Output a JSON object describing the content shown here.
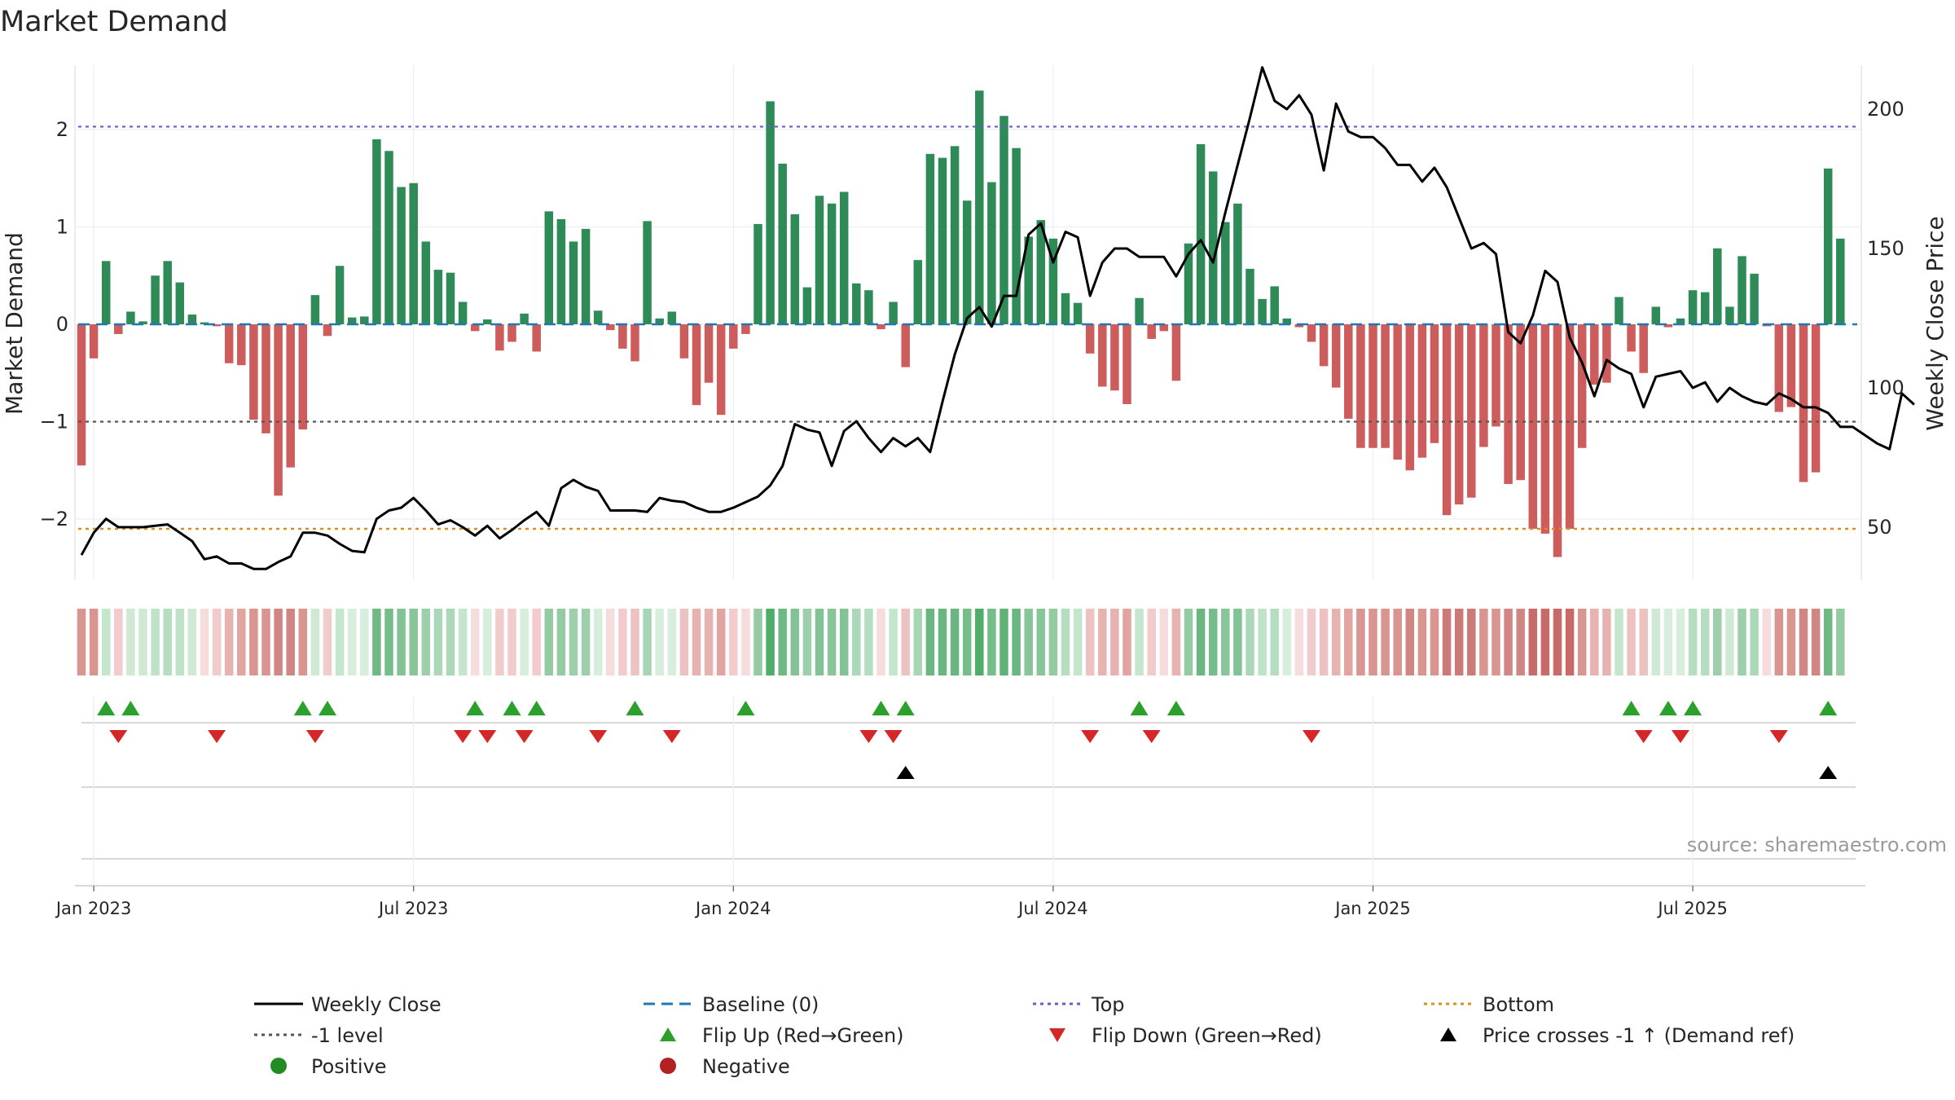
{
  "chart_data": {
    "type": "bar",
    "title": "Market Demand",
    "ylabel_left": "Market Demand",
    "ylabel_right": "Weekly Close Price",
    "ylim_left": [
      -2.65,
      2.5
    ],
    "ylim_right": [
      37,
      214
    ],
    "left_ticks": [
      {
        "v": 2,
        "label": "2"
      },
      {
        "v": 1,
        "label": "1"
      },
      {
        "v": 0,
        "label": "0"
      },
      {
        "v": -1,
        "label": "−1"
      },
      {
        "v": -2,
        "label": "−2"
      }
    ],
    "right_ticks": [
      {
        "v": 200,
        "label": "200"
      },
      {
        "v": 150,
        "label": "150"
      },
      {
        "v": 100,
        "label": "100"
      },
      {
        "v": 50,
        "label": "50"
      }
    ],
    "x_ticks": [
      {
        "i": 1,
        "label": "Jan 2023"
      },
      {
        "i": 27,
        "label": "Jul 2023"
      },
      {
        "i": 53,
        "label": "Jan 2024"
      },
      {
        "i": 79,
        "label": "Jul 2024"
      },
      {
        "i": 105,
        "label": "Jan 2025"
      },
      {
        "i": 131,
        "label": "Jul 2025"
      }
    ],
    "reference_lines": {
      "top": 2.03,
      "bottom": -2.1,
      "minus_one": -1.0,
      "baseline": 0
    },
    "demand": [
      -1.45,
      -0.35,
      0.65,
      -0.1,
      0.13,
      0.03,
      0.5,
      0.65,
      0.43,
      0.1,
      0.02,
      -0.02,
      -0.4,
      -0.42,
      -0.98,
      -1.12,
      -1.76,
      -1.47,
      -1.08,
      0.3,
      -0.12,
      0.6,
      0.07,
      0.08,
      1.9,
      1.78,
      1.41,
      1.45,
      0.85,
      0.56,
      0.53,
      0.23,
      -0.07,
      0.05,
      -0.27,
      -0.18,
      0.11,
      -0.28,
      1.16,
      1.08,
      0.85,
      0.98,
      0.14,
      -0.06,
      -0.25,
      -0.38,
      1.06,
      0.06,
      0.13,
      -0.35,
      -0.83,
      -0.6,
      -0.93,
      -0.25,
      -0.1,
      1.03,
      2.29,
      1.65,
      1.13,
      0.38,
      1.32,
      1.24,
      1.36,
      0.42,
      0.35,
      -0.05,
      0.23,
      -0.44,
      0.66,
      1.75,
      1.71,
      1.83,
      1.27,
      2.4,
      1.46,
      2.14,
      1.81,
      0.9,
      1.07,
      0.88,
      0.32,
      0.22,
      -0.3,
      -0.64,
      -0.68,
      -0.82,
      0.27,
      -0.15,
      -0.07,
      -0.58,
      0.83,
      1.85,
      1.57,
      1.05,
      1.24,
      0.57,
      0.26,
      0.39,
      0.06,
      -0.03,
      -0.18,
      -0.43,
      -0.65,
      -0.97,
      -1.27,
      -1.27,
      -1.27,
      -1.39,
      -1.5,
      -1.37,
      -1.22,
      -1.96,
      -1.85,
      -1.78,
      -1.26,
      -1.05,
      -1.64,
      -1.6,
      -2.1,
      -2.15,
      -2.39,
      -2.1,
      -1.27,
      -0.62,
      -0.6,
      0.28,
      -0.28,
      -0.5,
      0.18,
      -0.03,
      0.06,
      0.35,
      0.33,
      0.78,
      0.18,
      0.7,
      0.52,
      -0.02,
      -0.9,
      -0.85,
      -1.62,
      -1.52,
      1.6,
      0.88
    ],
    "close": [
      40,
      48,
      53,
      50,
      50,
      50,
      50.5,
      51,
      48,
      45,
      38.5,
      39.5,
      37,
      37,
      35,
      35,
      37.5,
      39.5,
      48,
      48,
      47,
      44,
      41.5,
      41,
      53,
      56,
      57,
      60.5,
      56,
      51,
      52.5,
      50,
      47,
      50.5,
      46,
      49,
      52.5,
      55.5,
      50.5,
      64,
      67,
      64.5,
      63,
      56,
      56,
      56,
      55.5,
      60.5,
      59.5,
      59,
      57,
      55.5,
      55.5,
      57,
      59,
      61,
      65,
      72,
      87,
      85,
      84,
      72,
      84.5,
      88,
      82,
      77,
      82,
      79,
      82,
      77,
      95,
      112,
      125,
      129,
      122,
      133,
      133,
      155,
      159,
      145,
      156,
      154,
      133,
      145,
      150,
      150,
      147,
      147,
      147,
      140,
      148,
      153,
      145,
      163,
      180,
      197,
      215,
      203,
      200,
      205,
      198,
      178,
      202,
      192,
      190,
      190,
      186,
      180,
      180,
      174,
      179,
      172,
      161,
      150,
      152,
      148,
      120,
      116,
      126,
      142,
      138,
      118,
      109,
      97,
      110,
      107,
      105,
      93,
      104,
      105,
      106,
      100,
      102,
      95,
      100,
      97,
      95,
      94,
      98,
      96,
      93,
      93,
      91,
      86,
      86,
      83,
      80,
      78,
      98,
      94
    ],
    "heat_cells": [
      "#d9958f",
      "#d9958f",
      "#c3e6cc",
      "#f2cccc",
      "#cfe9d5",
      "#cfe9d5",
      "#bfe3c8",
      "#b5ddc0",
      "#bfe3c8",
      "#cfe9d5",
      "#f6dcdc",
      "#f2cccc",
      "#e7b3b0",
      "#e1a4a1",
      "#d9958f",
      "#d9958f",
      "#d08784",
      "#d08784",
      "#d9958f",
      "#cfe9d5",
      "#f2cccc",
      "#c3e6cc",
      "#d8eedd",
      "#d8eedd",
      "#70b985",
      "#75bd8a",
      "#82c395",
      "#88c69a",
      "#9ccfaa",
      "#abd8b8",
      "#abd8b8",
      "#c3e6cc",
      "#f6dcdc",
      "#d8eedd",
      "#f2cccc",
      "#f2cccc",
      "#d8eedd",
      "#f2cccc",
      "#94cba3",
      "#94cba3",
      "#9ccfaa",
      "#9ccfaa",
      "#d8eedd",
      "#f6dcdc",
      "#f2cccc",
      "#edc2c2",
      "#a6d6b4",
      "#d8eedd",
      "#d8eedd",
      "#edc2c2",
      "#e7b3b0",
      "#e7b3b0",
      "#e1a4a1",
      "#f2cccc",
      "#f6dcdc",
      "#94cba3",
      "#4fad6a",
      "#70b985",
      "#82c395",
      "#9ccfaa",
      "#82c395",
      "#88c69a",
      "#82c395",
      "#abd8b8",
      "#b5ddc0",
      "#f6dcdc",
      "#c3e6cc",
      "#edc2c2",
      "#a6d6b4",
      "#6ab681",
      "#6ab681",
      "#6ab681",
      "#75bd8a",
      "#4fad6a",
      "#75bd8a",
      "#60b377",
      "#6ab681",
      "#88c69a",
      "#88c69a",
      "#94cba3",
      "#b5ddc0",
      "#c3e6cc",
      "#edc2c2",
      "#e7b3b0",
      "#e7b3b0",
      "#e1a4a1",
      "#c3e6cc",
      "#f2cccc",
      "#f6dcdc",
      "#e7b3b0",
      "#94cba3",
      "#6ab681",
      "#75bd8a",
      "#88c69a",
      "#82c395",
      "#abd8b8",
      "#bfe3c8",
      "#b5ddc0",
      "#d8eedd",
      "#f6dcdc",
      "#f2cccc",
      "#edc2c2",
      "#e7b3b0",
      "#e1a4a1",
      "#d9958f",
      "#d9958f",
      "#d9958f",
      "#d9958f",
      "#d08784",
      "#d9958f",
      "#d9958f",
      "#cc7a78",
      "#cc7a78",
      "#cc7a78",
      "#d9958f",
      "#d9958f",
      "#d08784",
      "#d08784",
      "#c86a68",
      "#c86a68",
      "#c86a68",
      "#c86a68",
      "#d9958f",
      "#e7b3b0",
      "#e7b3b0",
      "#c3e6cc",
      "#edc2c2",
      "#edc2c2",
      "#cfe9d5",
      "#d8eedd",
      "#d8eedd",
      "#b5ddc0",
      "#b5ddc0",
      "#9ccfaa",
      "#cfe9d5",
      "#9ccfaa",
      "#abd8b8",
      "#f6dcdc",
      "#d9958f",
      "#d9958f",
      "#d08784",
      "#d08784",
      "#70b985",
      "#94cba3"
    ],
    "flip_up": [
      2,
      4,
      18,
      20,
      32,
      35,
      37,
      45,
      54,
      65,
      67,
      86,
      89,
      126,
      129,
      131,
      142
    ],
    "flip_down": [
      3,
      11,
      19,
      31,
      33,
      36,
      42,
      48,
      64,
      66,
      82,
      87,
      100,
      127,
      130,
      138
    ],
    "price_cross": [
      67,
      142
    ],
    "colors": {
      "positive": "#2e8b57",
      "negative": "#cd5c5c",
      "close": "#000000",
      "baseline": "#1f77b4",
      "top": "#6a5acd",
      "bottom": "#dd8e1a",
      "minus_one": "#555555",
      "flip_up": "#2ca02c",
      "flip_down": "#d62728",
      "cross": "#000000",
      "positive_dot": "#228b22",
      "negative_dot": "#b22222"
    },
    "legend": {
      "weekly_close": "Weekly Close",
      "baseline": "Baseline (0)",
      "top": "Top",
      "bottom": "Bottom",
      "minus_one": "-1 level",
      "flip_up": "Flip Up (Red→Green)",
      "flip_down": "Flip Down (Green→Red)",
      "price_cross": "Price crosses -1 ↑ (Demand ref)",
      "positive": "Positive",
      "negative": "Negative"
    },
    "source": "source: sharemaestro.com"
  }
}
